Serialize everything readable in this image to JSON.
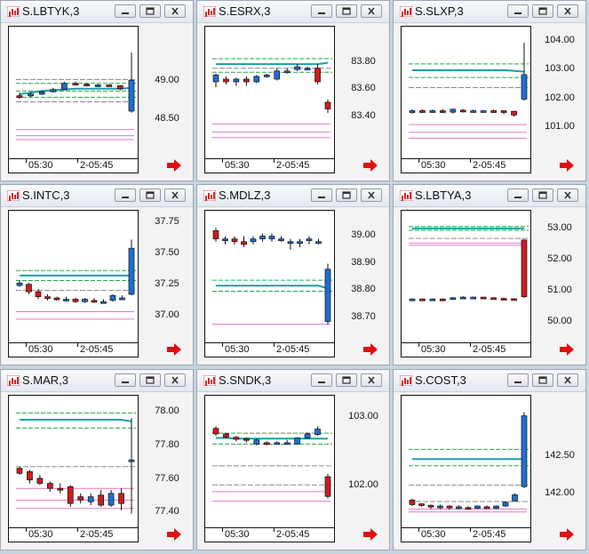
{
  "icon_names": {
    "title": "bar-chart-icon",
    "min": "minimize-icon",
    "max": "restore-icon",
    "close": "close-icon",
    "scroll": "right-arrow-icon"
  },
  "colors": {
    "up": "#1f6fd1",
    "down": "#cc1e1e",
    "ma": "#18a0a8",
    "band": "#2aa64a",
    "lower": "#e078c8",
    "arrow": "#e01010"
  },
  "windows": [
    {
      "title": "S.LBTYK,3",
      "time_labels": [
        "05:30",
        "2-05:45"
      ],
      "prices": [
        {
          "v": 49.0,
          "t": "49.00"
        },
        {
          "v": 48.5,
          "t": "48.50"
        }
      ],
      "ymin": 48.1,
      "ymax": 49.6,
      "candles": [
        [
          48.82,
          48.8,
          48.86,
          48.78
        ],
        [
          48.84,
          48.84,
          48.86,
          48.8
        ],
        [
          48.84,
          48.87,
          48.89,
          48.83
        ],
        [
          48.87,
          48.9,
          48.92,
          48.86
        ],
        [
          48.9,
          48.98,
          49.0,
          48.89
        ],
        [
          48.98,
          48.97,
          49.0,
          48.96
        ],
        [
          48.97,
          48.95,
          48.98,
          48.94
        ],
        [
          48.95,
          48.96,
          48.97,
          48.93
        ],
        [
          48.96,
          48.95,
          48.97,
          48.94
        ],
        [
          48.95,
          48.91,
          48.96,
          48.89
        ],
        [
          48.62,
          49.02,
          49.38,
          48.6
        ]
      ],
      "ma": [
        48.84,
        48.86,
        48.88,
        48.89,
        48.9,
        48.91,
        48.91,
        48.91,
        48.91,
        48.91,
        48.92
      ],
      "band_lines": [
        48.98,
        48.88,
        48.8
      ],
      "gray_lines": [
        49.03,
        48.74
      ],
      "lower_lines": [
        48.38,
        48.3,
        48.25
      ]
    },
    {
      "title": "S.ESRX,3",
      "time_labels": [
        "05:30",
        "2-05:45"
      ],
      "prices": [
        {
          "v": 83.8,
          "t": "83.80"
        },
        {
          "v": 83.6,
          "t": "83.60"
        },
        {
          "v": 83.4,
          "t": "83.40"
        }
      ],
      "ymin": 83.15,
      "ymax": 84.0,
      "candles": [
        [
          83.66,
          83.71,
          83.72,
          83.62
        ],
        [
          83.68,
          83.66,
          83.7,
          83.64
        ],
        [
          83.66,
          83.68,
          83.69,
          83.63
        ],
        [
          83.68,
          83.66,
          83.7,
          83.63
        ],
        [
          83.66,
          83.7,
          83.71,
          83.65
        ],
        [
          83.7,
          83.71,
          83.72,
          83.69
        ],
        [
          83.68,
          83.74,
          83.76,
          83.67
        ],
        [
          83.74,
          83.74,
          83.76,
          83.72
        ],
        [
          83.75,
          83.77,
          83.79,
          83.74
        ],
        [
          83.76,
          83.76,
          83.77,
          83.75
        ],
        [
          83.76,
          83.66,
          83.79,
          83.64
        ],
        [
          83.51,
          83.46,
          83.53,
          83.43
        ]
      ],
      "ma": [
        83.79,
        83.79,
        83.79,
        83.79,
        83.79,
        83.79,
        83.79,
        83.79,
        83.79,
        83.79,
        83.79,
        83.8
      ],
      "band_lines": [
        83.83,
        83.73
      ],
      "gray_lines": [
        83.76
      ],
      "lower_lines": [
        83.35,
        83.29,
        83.25
      ]
    },
    {
      "title": "S.SLXP,3",
      "time_labels": [
        "05:30",
        "2-05:45"
      ],
      "prices": [
        {
          "v": 104,
          "t": "104.00"
        },
        {
          "v": 103,
          "t": "103.00"
        },
        {
          "v": 102,
          "t": "102.00"
        },
        {
          "v": 101,
          "t": "101.00"
        }
      ],
      "ymin": 100.2,
      "ymax": 104.2,
      "candles": [
        [
          101.55,
          101.6,
          101.65,
          101.5
        ],
        [
          101.6,
          101.58,
          101.65,
          101.52
        ],
        [
          101.58,
          101.6,
          101.64,
          101.54
        ],
        [
          101.6,
          101.58,
          101.66,
          101.52
        ],
        [
          101.55,
          101.65,
          101.68,
          101.5
        ],
        [
          101.62,
          101.6,
          101.66,
          101.54
        ],
        [
          101.6,
          101.6,
          101.64,
          101.55
        ],
        [
          101.58,
          101.6,
          101.62,
          101.54
        ],
        [
          101.6,
          101.58,
          101.64,
          101.52
        ],
        [
          101.6,
          101.55,
          101.62,
          101.48
        ],
        [
          101.58,
          101.45,
          101.6,
          101.4
        ],
        [
          102.0,
          102.85,
          103.95,
          101.95
        ]
      ],
      "ma": [
        103.0,
        103.0,
        103.0,
        103.0,
        103.0,
        103.0,
        103.0,
        103.0,
        103.0,
        103.0,
        102.98,
        102.95
      ],
      "band_lines": [
        103.22,
        102.75
      ],
      "gray_lines": [
        102.4
      ],
      "lower_lines": [
        101.12,
        100.85,
        100.65
      ]
    },
    {
      "title": "S.INTC,3",
      "time_labels": [
        "05:30",
        "2-05:45"
      ],
      "prices": [
        {
          "v": 37.75,
          "t": "37.75"
        },
        {
          "v": 37.5,
          "t": "37.50"
        },
        {
          "v": 37.25,
          "t": "37.25"
        },
        {
          "v": 37.0,
          "t": "37.00"
        }
      ],
      "ymin": 36.85,
      "ymax": 37.78,
      "candles": [
        [
          37.25,
          37.27,
          37.29,
          37.24
        ],
        [
          37.26,
          37.2,
          37.27,
          37.18
        ],
        [
          37.2,
          37.16,
          37.22,
          37.14
        ],
        [
          37.16,
          37.15,
          37.18,
          37.13
        ],
        [
          37.15,
          37.14,
          37.16,
          37.13
        ],
        [
          37.14,
          37.14,
          37.16,
          37.12
        ],
        [
          37.14,
          37.12,
          37.15,
          37.11
        ],
        [
          37.12,
          37.14,
          37.15,
          37.11
        ],
        [
          37.13,
          37.12,
          37.15,
          37.11
        ],
        [
          37.12,
          37.12,
          37.14,
          37.11
        ],
        [
          37.13,
          37.17,
          37.18,
          37.12
        ],
        [
          37.15,
          37.15,
          37.17,
          37.14
        ],
        [
          37.18,
          37.55,
          37.62,
          37.17
        ]
      ],
      "ma": [
        37.33,
        37.33,
        37.33,
        37.33,
        37.33,
        37.33,
        37.33,
        37.33,
        37.33,
        37.33,
        37.33,
        37.33,
        37.33
      ],
      "band_lines": [
        37.37,
        37.29
      ],
      "gray_lines": [
        37.21
      ],
      "lower_lines": [
        37.04,
        36.98
      ]
    },
    {
      "title": "S.MDLZ,3",
      "time_labels": [
        "05:30",
        "2-05:45"
      ],
      "prices": [
        {
          "v": 39.0,
          "t": "39.00"
        },
        {
          "v": 38.9,
          "t": "38.90"
        },
        {
          "v": 38.8,
          "t": "38.80"
        },
        {
          "v": 38.7,
          "t": "38.70"
        }
      ],
      "ymin": 38.64,
      "ymax": 39.06,
      "candles": [
        [
          39.02,
          38.99,
          39.03,
          38.98
        ],
        [
          38.99,
          38.99,
          39.0,
          38.97
        ],
        [
          38.99,
          38.98,
          39.0,
          38.97
        ],
        [
          38.98,
          38.97,
          39.0,
          38.96
        ],
        [
          38.98,
          38.99,
          39.0,
          38.97
        ],
        [
          38.99,
          39.0,
          39.01,
          38.98
        ],
        [
          38.99,
          39.0,
          39.01,
          38.98
        ],
        [
          38.99,
          38.99,
          39.0,
          38.98
        ],
        [
          38.98,
          38.98,
          38.99,
          38.95
        ],
        [
          38.98,
          38.98,
          38.99,
          38.96
        ],
        [
          38.99,
          38.99,
          39.0,
          38.97
        ],
        [
          38.98,
          38.98,
          38.99,
          38.97
        ],
        [
          38.69,
          38.88,
          38.9,
          38.68
        ]
      ],
      "ma": [
        38.82,
        38.82,
        38.82,
        38.82,
        38.82,
        38.82,
        38.82,
        38.82,
        38.82,
        38.82,
        38.82,
        38.82,
        38.81
      ],
      "band_lines": [
        38.84,
        38.8
      ],
      "gray_lines": [],
      "lower_lines": [
        38.68
      ]
    },
    {
      "title": "S.LBTYA,3",
      "time_labels": [
        "05:30",
        "2-05:45"
      ],
      "prices": [
        {
          "v": 53,
          "t": "53.00"
        },
        {
          "v": 52,
          "t": "52.00"
        },
        {
          "v": 51,
          "t": "51.00"
        },
        {
          "v": 50,
          "t": "50.00"
        }
      ],
      "ymin": 49.6,
      "ymax": 53.3,
      "candles": [
        [
          50.75,
          50.76,
          50.78,
          50.73
        ],
        [
          50.76,
          50.75,
          50.78,
          50.73
        ],
        [
          50.75,
          50.76,
          50.78,
          50.73
        ],
        [
          50.76,
          50.75,
          50.78,
          50.73
        ],
        [
          50.75,
          50.8,
          50.82,
          50.74
        ],
        [
          50.8,
          50.82,
          50.85,
          50.78
        ],
        [
          50.82,
          50.82,
          50.84,
          50.8
        ],
        [
          50.82,
          50.8,
          50.83,
          50.78
        ],
        [
          50.8,
          50.78,
          50.82,
          50.76
        ],
        [
          50.78,
          50.77,
          50.8,
          50.75
        ],
        [
          50.77,
          50.75,
          50.78,
          50.74
        ],
        [
          52.65,
          50.83,
          52.65,
          50.8
        ]
      ],
      "ma": [
        53.02,
        53.02,
        53.02,
        53.02,
        53.02,
        53.02,
        53.02,
        53.02,
        53.02,
        53.02,
        53.02,
        53.02
      ],
      "band_lines": [
        53.08,
        52.96
      ],
      "gray_lines": [
        52.7
      ],
      "lower_lines": [
        52.55,
        52.48
      ]
    },
    {
      "title": "S.MAR,3",
      "time_labels": [
        "05:30",
        "2-05:45"
      ],
      "prices": [
        {
          "v": 78.0,
          "t": "78.00"
        },
        {
          "v": 77.8,
          "t": "77.80"
        },
        {
          "v": 77.6,
          "t": "77.60"
        },
        {
          "v": 77.4,
          "t": "77.40"
        }
      ],
      "ymin": 77.36,
      "ymax": 78.05,
      "candles": [
        [
          77.67,
          77.64,
          77.68,
          77.63
        ],
        [
          77.65,
          77.6,
          77.66,
          77.58
        ],
        [
          77.61,
          77.58,
          77.63,
          77.57
        ],
        [
          77.58,
          77.55,
          77.59,
          77.53
        ],
        [
          77.55,
          77.54,
          77.58,
          77.52
        ],
        [
          77.56,
          77.46,
          77.57,
          77.44
        ],
        [
          77.5,
          77.48,
          77.52,
          77.46
        ],
        [
          77.47,
          77.5,
          77.52,
          77.45
        ],
        [
          77.51,
          77.45,
          77.54,
          77.44
        ],
        [
          77.45,
          77.52,
          77.54,
          77.44
        ],
        [
          77.52,
          77.46,
          77.55,
          77.42
        ],
        [
          77.71,
          77.72,
          77.97,
          77.4
        ]
      ],
      "ma": [
        77.96,
        77.96,
        77.96,
        77.96,
        77.96,
        77.96,
        77.96,
        77.96,
        77.96,
        77.96,
        77.96,
        77.95
      ],
      "band_lines": [
        78.0,
        77.91
      ],
      "gray_lines": [
        77.68
      ],
      "lower_lines": [
        77.55,
        77.48,
        77.43
      ]
    },
    {
      "title": "S.SNDK,3",
      "time_labels": [
        "05:30",
        "2-05:45"
      ],
      "prices": [
        {
          "v": 103,
          "t": "103.00"
        },
        {
          "v": 102,
          "t": "102.00"
        }
      ],
      "ymin": 101.5,
      "ymax": 103.2,
      "candles": [
        [
          102.85,
          102.77,
          102.88,
          102.74
        ],
        [
          102.77,
          102.72,
          102.78,
          102.7
        ],
        [
          102.72,
          102.69,
          102.74,
          102.66
        ],
        [
          102.7,
          102.68,
          102.72,
          102.64
        ],
        [
          102.62,
          102.68,
          102.7,
          102.6
        ],
        [
          102.64,
          102.62,
          102.66,
          102.6
        ],
        [
          102.62,
          102.64,
          102.66,
          102.61
        ],
        [
          102.64,
          102.64,
          102.68,
          102.61
        ],
        [
          102.62,
          102.71,
          102.72,
          102.61
        ],
        [
          102.71,
          102.77,
          102.79,
          102.7
        ],
        [
          102.76,
          102.84,
          102.88,
          102.74
        ],
        [
          102.14,
          101.85,
          102.18,
          101.82
        ]
      ],
      "ma": [
        102.71,
        102.71,
        102.7,
        102.7,
        102.7,
        102.7,
        102.7,
        102.7,
        102.7,
        102.7,
        102.7,
        102.7
      ],
      "band_lines": [
        102.78,
        102.62
      ],
      "gray_lines": [
        102.3,
        102.02
      ],
      "lower_lines": [
        101.92,
        101.78
      ]
    },
    {
      "title": "S.COST,3",
      "time_labels": [
        "05:30",
        "2-05:45"
      ],
      "prices": [
        {
          "v": 142.5,
          "t": "142.50"
        },
        {
          "v": 142.0,
          "t": "142.00"
        }
      ],
      "ymin": 141.65,
      "ymax": 143.2,
      "candles": [
        [
          141.92,
          141.86,
          141.94,
          141.84
        ],
        [
          141.87,
          141.85,
          141.88,
          141.83
        ],
        [
          141.85,
          141.83,
          141.86,
          141.8
        ],
        [
          141.83,
          141.84,
          141.86,
          141.8
        ],
        [
          141.84,
          141.82,
          141.85,
          141.79
        ],
        [
          141.82,
          141.83,
          141.85,
          141.8
        ],
        [
          141.82,
          141.81,
          141.84,
          141.79
        ],
        [
          141.81,
          141.84,
          141.85,
          141.8
        ],
        [
          141.83,
          141.82,
          141.85,
          141.8
        ],
        [
          141.81,
          141.84,
          141.85,
          141.8
        ],
        [
          141.84,
          141.89,
          141.9,
          141.83
        ],
        [
          141.91,
          141.99,
          142.01,
          141.9
        ],
        [
          142.1,
          143.05,
          143.1,
          142.08
        ]
      ],
      "ma": [
        142.47,
        142.47,
        142.47,
        142.47,
        142.47,
        142.47,
        142.47,
        142.47,
        142.47,
        142.47,
        142.47,
        142.47,
        142.47
      ],
      "band_lines": [
        142.6,
        142.38
      ],
      "gray_lines": [
        142.12,
        141.9
      ],
      "lower_lines": [
        141.8,
        141.76
      ]
    }
  ]
}
